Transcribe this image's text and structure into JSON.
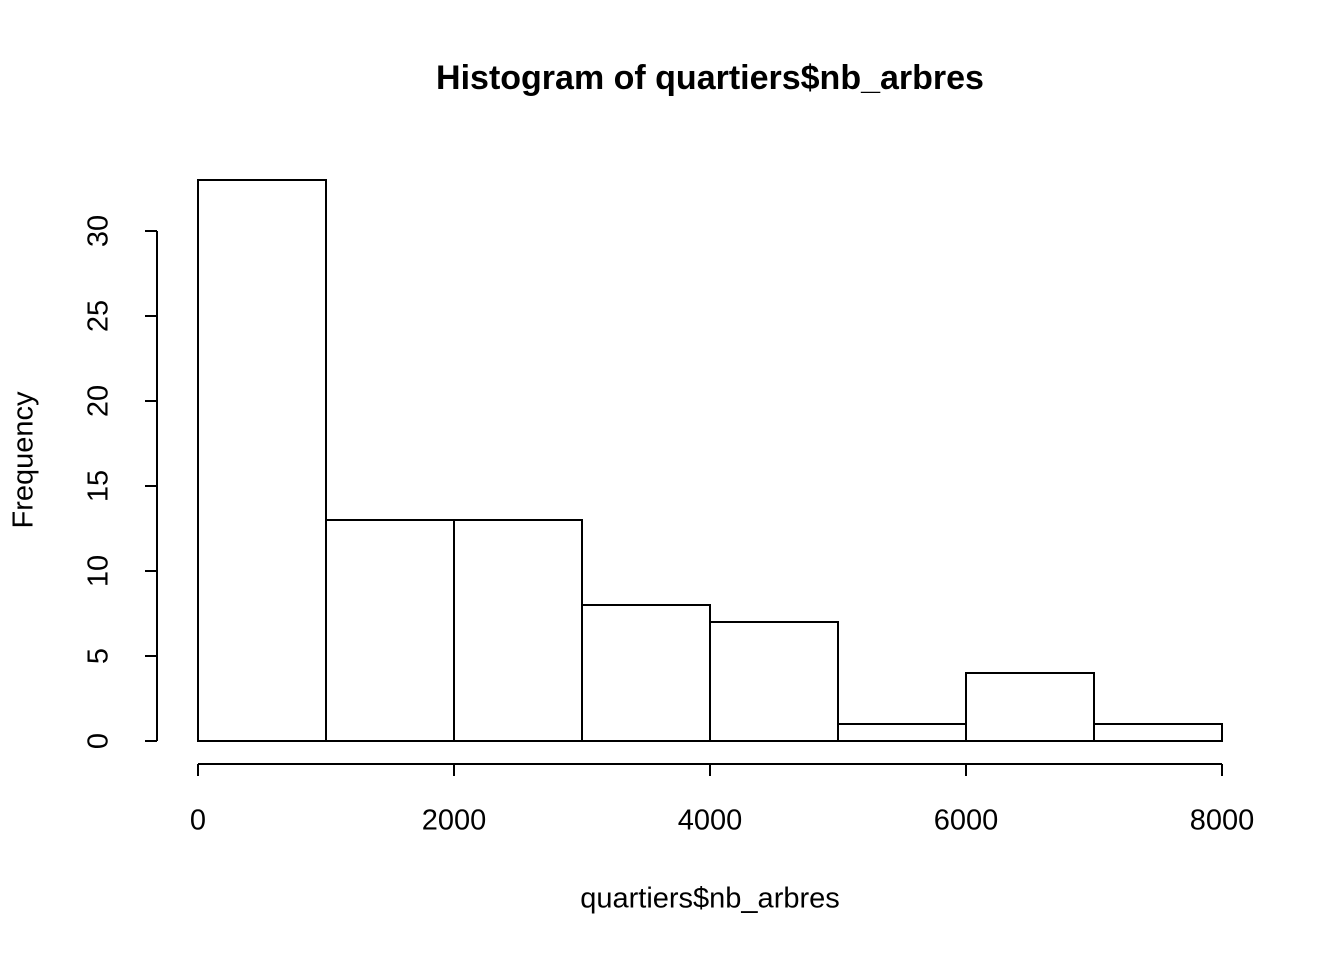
{
  "chart_data": {
    "type": "histogram",
    "title": "Histogram of quartiers$nb_arbres",
    "xlabel": "quartiers$nb_arbres",
    "ylabel": "Frequency",
    "bins": [
      0,
      1000,
      2000,
      3000,
      4000,
      5000,
      6000,
      7000,
      8000
    ],
    "values": [
      33,
      13,
      13,
      8,
      7,
      1,
      4,
      1
    ],
    "color": "#ffffff",
    "xlim": [
      0,
      8000
    ],
    "xticks": [
      0,
      2000,
      4000,
      6000,
      8000
    ],
    "ylim": [
      0,
      33
    ],
    "yticks": [
      0,
      5,
      10,
      15,
      20,
      25,
      30
    ]
  }
}
